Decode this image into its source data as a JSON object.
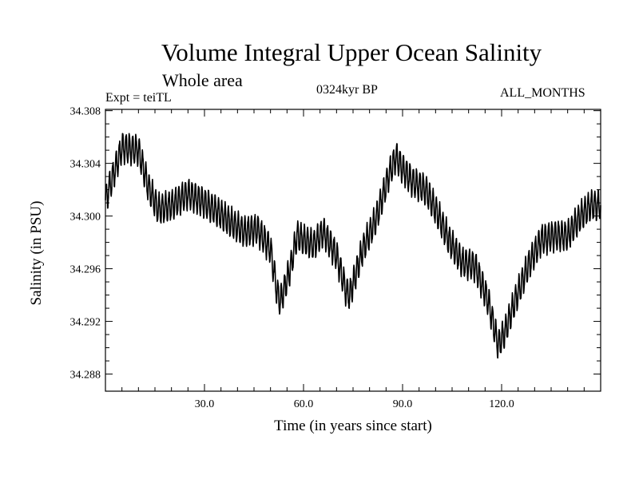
{
  "chart_data": {
    "type": "line",
    "title": "Volume Integral Upper Ocean Salinity",
    "subtitle": "Whole area",
    "experiment": "Expt = teiTL",
    "period": "0324kyr BP",
    "months": "ALL_MONTHS",
    "xlabel": "Time (in years since start)",
    "ylabel": "Salinity (in PSU)",
    "xlim": [
      0,
      150
    ],
    "ylim": [
      34.2867,
      34.3081
    ],
    "x_ticks": [
      30,
      60,
      90,
      120
    ],
    "x_tick_labels": [
      "30.0",
      "60.0",
      "90.0",
      "120.0"
    ],
    "y_ticks": [
      34.288,
      34.292,
      34.296,
      34.3,
      34.304,
      34.308
    ],
    "y_tick_labels": [
      "34.288",
      "34.292",
      "34.296",
      "34.300",
      "34.304",
      "34.308"
    ],
    "grid": false,
    "series": [
      {
        "name": "Salinity",
        "seasonal_amplitude": 0.0012,
        "trend": {
          "x": [
            0,
            5,
            10,
            13,
            16,
            20,
            25,
            30,
            33,
            38,
            42,
            46,
            50,
            52,
            53,
            56,
            58,
            60,
            63,
            66,
            70,
            73,
            74,
            78,
            82,
            86,
            88,
            90,
            93,
            97,
            100,
            104,
            108,
            112,
            116,
            118,
            119,
            121,
            124,
            128,
            132,
            136,
            140,
            144,
            147,
            150
          ],
          "y": [
            34.3012,
            34.3052,
            34.305,
            34.3022,
            34.3005,
            34.3008,
            34.3017,
            34.301,
            34.3005,
            34.2995,
            34.2988,
            34.299,
            34.2975,
            34.2942,
            34.2935,
            34.296,
            34.2985,
            34.2982,
            34.2978,
            34.2988,
            34.297,
            34.2942,
            34.294,
            34.2975,
            34.2998,
            34.3032,
            34.3045,
            34.3036,
            34.3026,
            34.302,
            34.3005,
            34.2982,
            34.2965,
            34.2962,
            34.2935,
            34.2912,
            34.2902,
            34.2912,
            34.2935,
            34.2962,
            34.2982,
            34.2985,
            34.2985,
            34.3,
            34.3008,
            34.3008
          ]
        }
      }
    ]
  }
}
